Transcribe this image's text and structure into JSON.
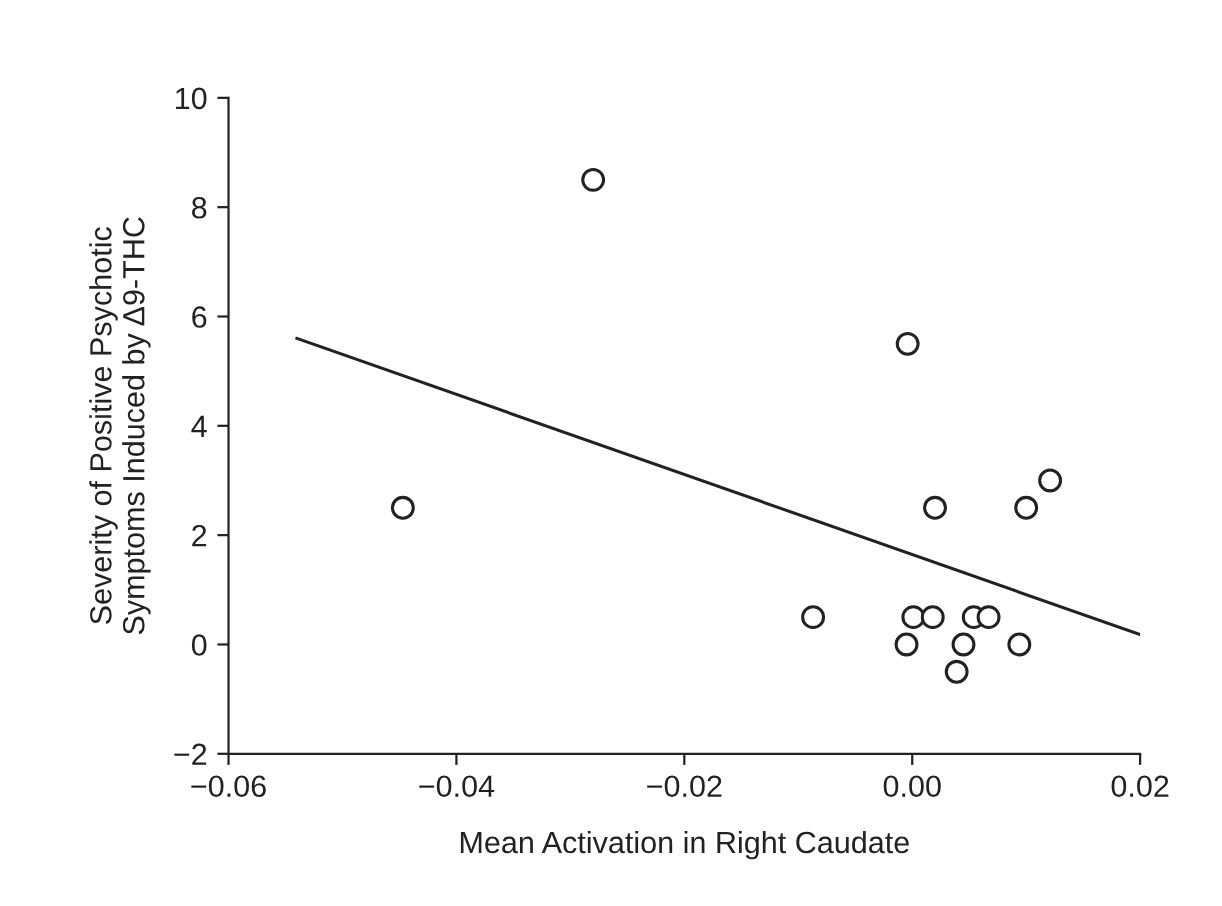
{
  "chart_data": {
    "type": "scatter",
    "xlabel": "Mean Activation in Right Caudate",
    "ylabel": "Severity of Positive Psychotic\nSymptoms Induced by Δ9-THC",
    "xlim": [
      -0.06,
      0.02
    ],
    "xticks": [
      {
        "value": -0.06,
        "label": "−0.06"
      },
      {
        "value": -0.04,
        "label": "−0.04"
      },
      {
        "value": -0.02,
        "label": "−0.02"
      },
      {
        "value": 0,
        "label": "0.00"
      },
      {
        "value": 0.02,
        "label": "0.02"
      }
    ],
    "ylim": [
      -2,
      10
    ],
    "yticks": [
      {
        "value": -2,
        "label": "−2"
      },
      0,
      2,
      4,
      6,
      8,
      10
    ],
    "grid": false,
    "series": [
      {
        "marker": "circle",
        "color": "#222222",
        "x": [
          -0.0447,
          -0.028,
          -0.0004,
          0.0121,
          0.002,
          0.01,
          -0.0087,
          0.0001,
          0.0018,
          0.0054,
          0.0067,
          -0.0005,
          0.0045,
          0.0094,
          0.0039
        ],
        "values": [
          2.5,
          8.5,
          5.5,
          3.0,
          2.5,
          2.5,
          0.5,
          0.5,
          0.5,
          0.5,
          0.5,
          0,
          0,
          0,
          -0.5
        ]
      },
      {
        "type": "line",
        "color": "#222222",
        "x": [
          -0.054,
          0.02
        ],
        "values": [
          5.6,
          0.18
        ]
      }
    ]
  }
}
